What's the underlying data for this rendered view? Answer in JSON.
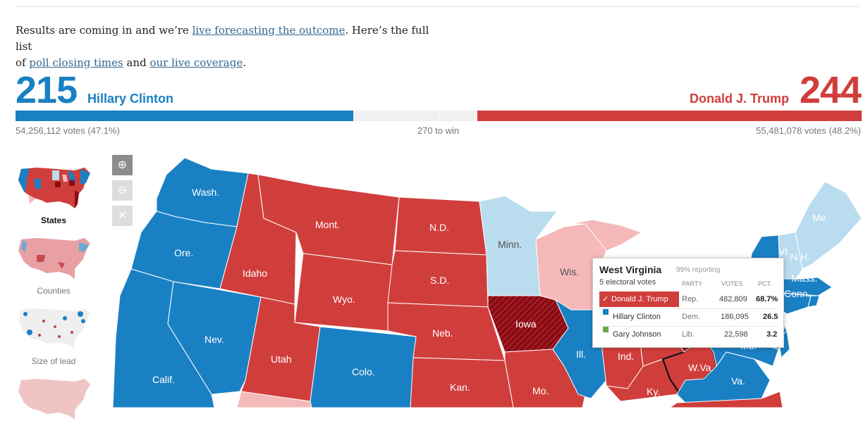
{
  "intro": {
    "t1": "Results are coming in and we’re ",
    "link1": "live forecasting the outcome",
    "t2": ". Here’s the full list",
    "t3": "of ",
    "link2": "poll closing times",
    "t4": " and ",
    "link3": "our live coverage",
    "t5": "."
  },
  "scoreboard": {
    "dem": {
      "electoral": "215",
      "name": "Hillary Clinton",
      "votes": "54,256,112 votes (47.1%)",
      "color": "#1a80c4"
    },
    "rep": {
      "electoral": "244",
      "name": "Donald J. Trump",
      "votes": "55,481,078 votes (48.2%)",
      "color": "#d03e3c"
    },
    "to_win": "270 to win"
  },
  "views": [
    {
      "label": "States"
    },
    {
      "label": "Counties"
    },
    {
      "label": "Size of lead"
    }
  ],
  "zoom": {
    "in_icon": "zoom-in-icon",
    "out_icon": "zoom-out-icon",
    "reset_icon": "close-icon"
  },
  "map": {
    "labels": {
      "wash": "Wash.",
      "ore": "Ore.",
      "calif": "Calif.",
      "nev": "Nev.",
      "idaho": "Idaho",
      "mont": "Mont.",
      "wyo": "Wyo.",
      "utah": "Utah",
      "colo": "Colo.",
      "nd": "N.D.",
      "sd": "S.D.",
      "neb": "Neb.",
      "kan": "Kan.",
      "minn": "Minn.",
      "iowa": "Iowa",
      "mo": "Mo.",
      "wis": "Wis.",
      "ill": "Ill.",
      "ind": "Ind.",
      "ky": "Ky.",
      "wva": "W.Va.",
      "va": "Va.",
      "me": "Me.",
      "vt": "Vt.",
      "nh": "N.H.",
      "mass": "Mass.",
      "conn": "Conn.",
      "md": "Md."
    }
  },
  "tooltip": {
    "state": "West Virginia",
    "reporting": "99% reporting",
    "electoral": "5 electoral votes",
    "headers": {
      "party": "PARTY",
      "votes": "VOTES",
      "pct": "PCT."
    },
    "rows": [
      {
        "check": "✓",
        "name": "Donald J. Trump",
        "party": "Rep.",
        "votes": "482,809",
        "pct": "68.7%"
      },
      {
        "name": "Hillary Clinton",
        "party": "Dem.",
        "votes": "186,095",
        "pct": "26.5",
        "color": "#1a80c4"
      },
      {
        "name": "Gary Johnson",
        "party": "Lib.",
        "votes": "22,598",
        "pct": "3.2",
        "color": "#6aa84f"
      }
    ]
  }
}
